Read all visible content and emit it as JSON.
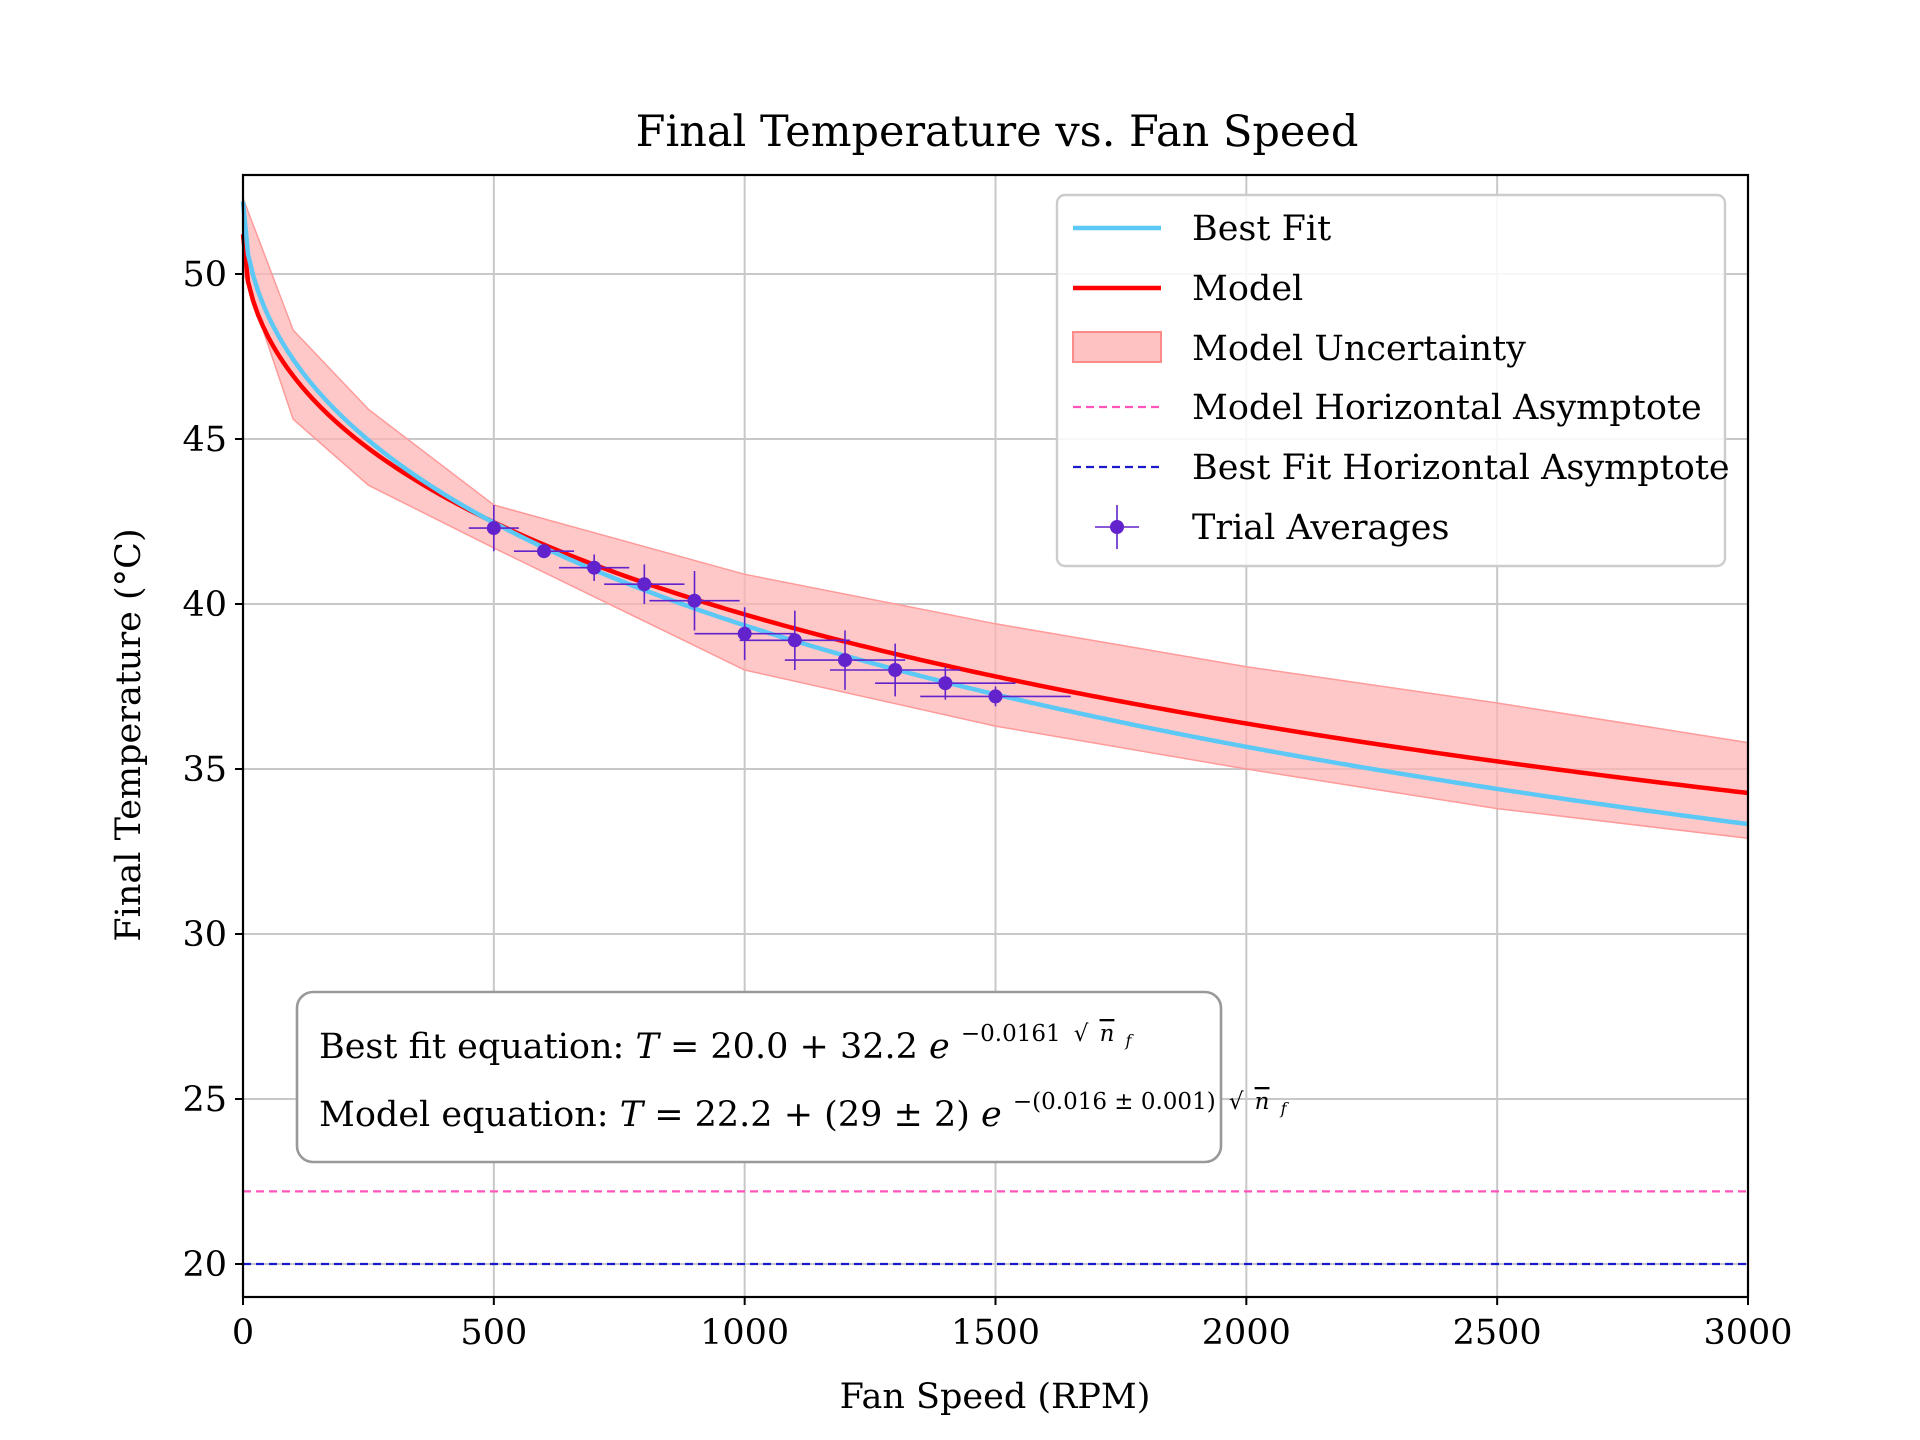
{
  "chart_data": {
    "type": "line",
    "title": "Final Temperature vs. Fan Speed",
    "xlabel": "Fan Speed (RPM)",
    "ylabel": "Final Temperature (°C)",
    "xlim": [
      0,
      3000
    ],
    "ylim": [
      19,
      53
    ],
    "xticks": [
      0,
      500,
      1000,
      1500,
      2000,
      2500,
      3000
    ],
    "yticks": [
      20,
      25,
      30,
      35,
      40,
      45,
      50
    ],
    "grid": true,
    "legend_position": "top-right",
    "colors": {
      "best_fit": "#5bc8f5",
      "model": "#ff0000",
      "uncertainty": "#ffb3b3",
      "model_asymptote": "#ff55bb",
      "best_fit_asymptote": "#1a1acc",
      "trials": "#6222cc"
    },
    "series": [
      {
        "name": "Best Fit",
        "kind": "line",
        "equation": {
          "a": 20.0,
          "b": 32.2,
          "k": 0.0161
        }
      },
      {
        "name": "Model",
        "kind": "line",
        "equation": {
          "a": 22.2,
          "b": 29,
          "k": 0.016
        }
      },
      {
        "name": "Model Uncertainty",
        "kind": "band",
        "upper": [
          [
            0,
            52.3
          ],
          [
            100,
            48.3
          ],
          [
            250,
            45.9
          ],
          [
            500,
            43.0
          ],
          [
            1000,
            40.9
          ],
          [
            1500,
            39.4
          ],
          [
            2000,
            38.1
          ],
          [
            2500,
            37.0
          ],
          [
            3000,
            35.8
          ]
        ],
        "lower": [
          [
            0,
            50.1
          ],
          [
            100,
            45.6
          ],
          [
            250,
            43.6
          ],
          [
            500,
            41.7
          ],
          [
            1000,
            38.0
          ],
          [
            1500,
            36.3
          ],
          [
            2000,
            35.0
          ],
          [
            2500,
            33.8
          ],
          [
            3000,
            32.9
          ]
        ]
      },
      {
        "name": "Model Horizontal Asymptote",
        "kind": "hline",
        "y": 22.2
      },
      {
        "name": "Best Fit Horizontal Asymptote",
        "kind": "hline",
        "y": 20.0
      },
      {
        "name": "Trial Averages",
        "kind": "errorbar",
        "points": [
          {
            "x": 500,
            "y": 42.3,
            "xerr": 50,
            "yerr": 0.7
          },
          {
            "x": 600,
            "y": 41.6,
            "xerr": 60,
            "yerr": 0.2
          },
          {
            "x": 700,
            "y": 41.1,
            "xerr": 70,
            "yerr": 0.4
          },
          {
            "x": 800,
            "y": 40.6,
            "xerr": 80,
            "yerr": 0.6
          },
          {
            "x": 900,
            "y": 40.1,
            "xerr": 90,
            "yerr": 0.9
          },
          {
            "x": 1000,
            "y": 39.1,
            "xerr": 100,
            "yerr": 0.8
          },
          {
            "x": 1100,
            "y": 38.9,
            "xerr": 110,
            "yerr": 0.9
          },
          {
            "x": 1200,
            "y": 38.3,
            "xerr": 120,
            "yerr": 0.9
          },
          {
            "x": 1300,
            "y": 38.0,
            "xerr": 130,
            "yerr": 0.8
          },
          {
            "x": 1400,
            "y": 37.6,
            "xerr": 140,
            "yerr": 0.5
          },
          {
            "x": 1500,
            "y": 37.2,
            "xerr": 150,
            "yerr": 0.3
          }
        ]
      }
    ],
    "annotation": {
      "best_fit_label": "Best fit equation:",
      "model_label": "Model equation:",
      "best_fit_equation": {
        "lhs": "T",
        "constant": "20.0",
        "coefficient": "32.2",
        "base": "e",
        "exponent": "−0.0161",
        "radicand": "n",
        "radicand_sub": "f"
      },
      "model_equation": {
        "lhs": "T",
        "constant": "22.2",
        "coefficient": "(29 ± 2)",
        "base": "e",
        "exponent": "−(0.016 ± 0.001)",
        "radicand": "n",
        "radicand_sub": "f"
      }
    }
  }
}
